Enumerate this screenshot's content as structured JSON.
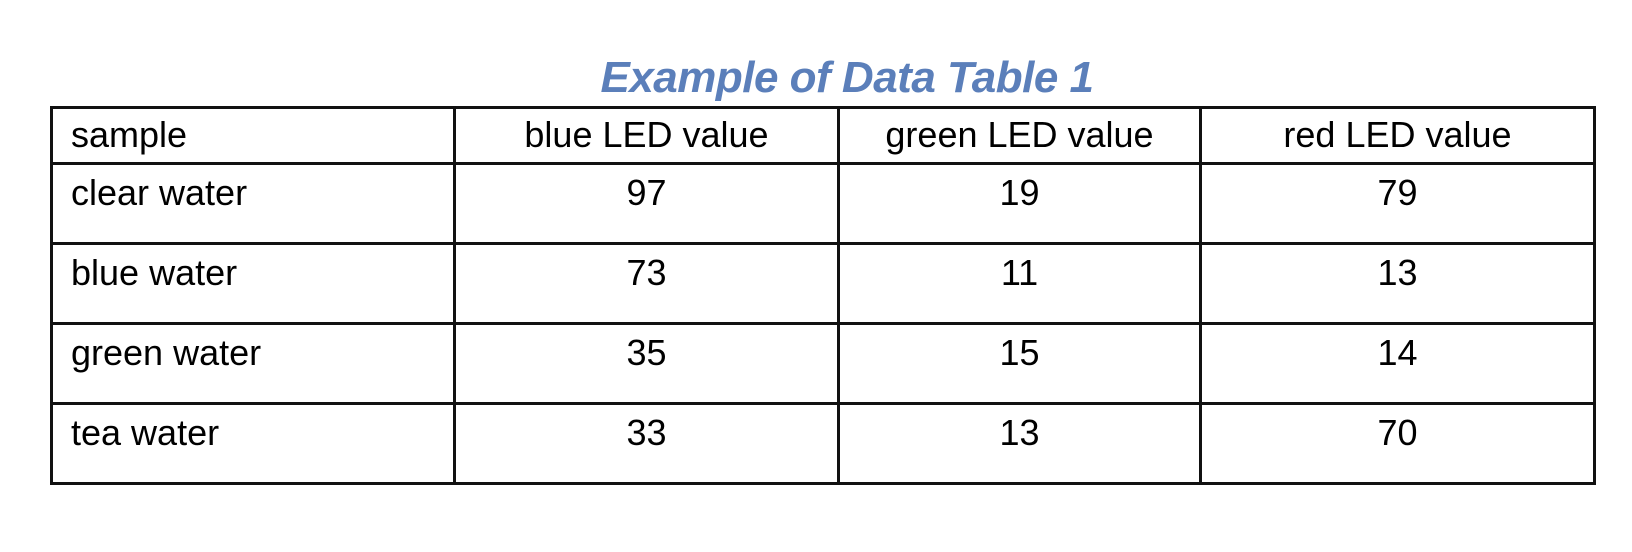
{
  "title": "Example of Data Table 1",
  "colors": {
    "title": "#5b7fba",
    "border": "#111111",
    "text": "#000000",
    "background": "#ffffff"
  },
  "table": {
    "headers": [
      "sample",
      "blue LED value",
      "green LED value",
      "red LED value"
    ],
    "rows": [
      [
        "clear water",
        "97",
        "19",
        "79"
      ],
      [
        "blue water",
        "73",
        "11",
        "13"
      ],
      [
        "green water",
        "35",
        "15",
        "14"
      ],
      [
        "tea water",
        "33",
        "13",
        "70"
      ]
    ]
  }
}
